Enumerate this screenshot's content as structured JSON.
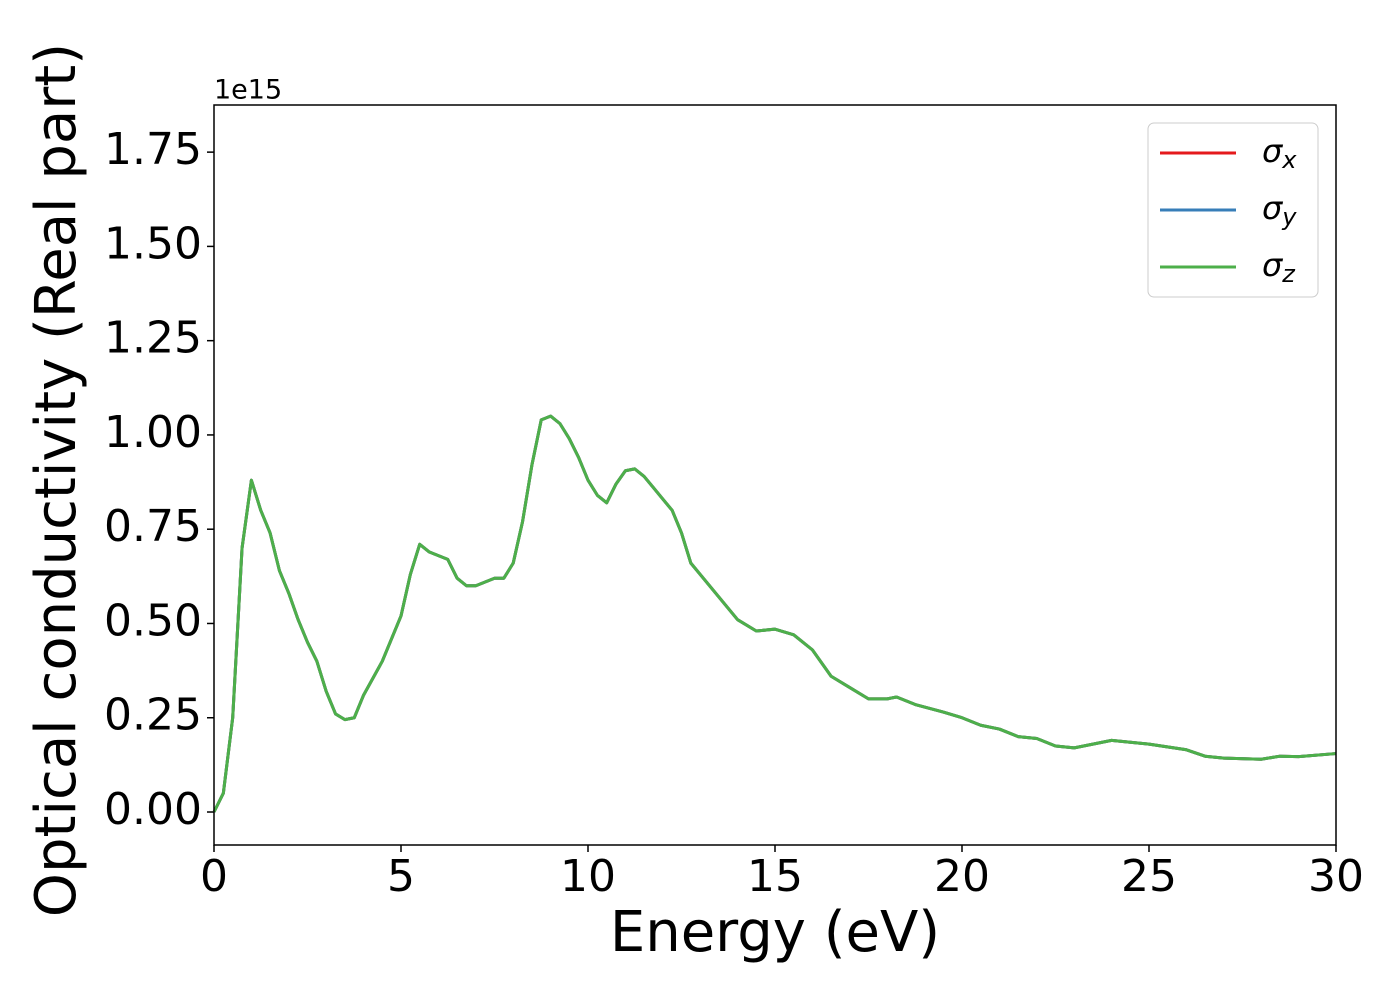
{
  "chart_data": {
    "type": "line",
    "xlabel": "Energy (eV)",
    "ylabel": "Optical conductivity (Real part)",
    "y_offset_label": "1e15",
    "x": [
      0,
      0.25,
      0.5,
      0.75,
      1.0,
      1.25,
      1.5,
      1.75,
      2.0,
      2.25,
      2.5,
      2.75,
      3.0,
      3.25,
      3.5,
      3.75,
      4.0,
      4.5,
      5.0,
      5.25,
      5.5,
      5.75,
      6.0,
      6.25,
      6.5,
      6.75,
      7.0,
      7.25,
      7.5,
      7.75,
      8.0,
      8.25,
      8.5,
      8.75,
      9.0,
      9.25,
      9.5,
      9.75,
      10.0,
      10.25,
      10.5,
      10.75,
      11.0,
      11.25,
      11.5,
      11.75,
      12.0,
      12.25,
      12.5,
      12.75,
      13.0,
      13.5,
      14.0,
      14.5,
      15.0,
      15.5,
      16.0,
      16.5,
      17.0,
      17.5,
      18.0,
      18.25,
      18.75,
      19.5,
      20.0,
      20.5,
      21.0,
      21.5,
      22.0,
      22.5,
      23.0,
      23.5,
      24.0,
      24.5,
      25.0,
      26.0,
      26.5,
      27.0,
      28.0,
      28.5,
      29.0,
      30.0
    ],
    "series": [
      {
        "name": "σx",
        "color": "#e41a1c",
        "values": [
          0,
          0.05,
          0.25,
          0.7,
          0.88,
          0.8,
          0.74,
          0.64,
          0.58,
          0.51,
          0.45,
          0.4,
          0.32,
          0.26,
          0.245,
          0.25,
          0.31,
          0.4,
          0.52,
          0.63,
          0.71,
          0.69,
          0.68,
          0.67,
          0.62,
          0.6,
          0.6,
          0.61,
          0.62,
          0.62,
          0.66,
          0.77,
          0.92,
          1.04,
          1.05,
          1.03,
          0.99,
          0.94,
          0.88,
          0.84,
          0.82,
          0.87,
          0.905,
          0.91,
          0.89,
          0.86,
          0.83,
          0.8,
          0.74,
          0.66,
          0.63,
          0.57,
          0.51,
          0.48,
          0.485,
          0.47,
          0.43,
          0.36,
          0.33,
          0.3,
          0.3,
          0.305,
          0.285,
          0.265,
          0.25,
          0.23,
          0.22,
          0.2,
          0.195,
          0.175,
          0.17,
          0.18,
          0.19,
          0.185,
          0.18,
          0.165,
          0.148,
          0.143,
          0.14,
          0.148,
          0.147,
          0.155
        ]
      },
      {
        "name": "σy",
        "color": "#377eb8",
        "values": [
          0,
          0.05,
          0.25,
          0.7,
          0.88,
          0.8,
          0.74,
          0.64,
          0.58,
          0.51,
          0.45,
          0.4,
          0.32,
          0.26,
          0.245,
          0.25,
          0.31,
          0.4,
          0.52,
          0.63,
          0.71,
          0.69,
          0.68,
          0.67,
          0.62,
          0.6,
          0.6,
          0.61,
          0.62,
          0.62,
          0.66,
          0.77,
          0.92,
          1.04,
          1.05,
          1.03,
          0.99,
          0.94,
          0.88,
          0.84,
          0.82,
          0.87,
          0.905,
          0.91,
          0.89,
          0.86,
          0.83,
          0.8,
          0.74,
          0.66,
          0.63,
          0.57,
          0.51,
          0.48,
          0.485,
          0.47,
          0.43,
          0.36,
          0.33,
          0.3,
          0.3,
          0.305,
          0.285,
          0.265,
          0.25,
          0.23,
          0.22,
          0.2,
          0.195,
          0.175,
          0.17,
          0.18,
          0.19,
          0.185,
          0.18,
          0.165,
          0.148,
          0.143,
          0.14,
          0.148,
          0.147,
          0.155
        ]
      },
      {
        "name": "σz",
        "color": "#4daf4a",
        "values": [
          0,
          0.05,
          0.25,
          0.7,
          0.88,
          0.8,
          0.74,
          0.64,
          0.58,
          0.51,
          0.45,
          0.4,
          0.32,
          0.26,
          0.245,
          0.25,
          0.31,
          0.4,
          0.52,
          0.63,
          0.71,
          0.69,
          0.68,
          0.67,
          0.62,
          0.6,
          0.6,
          0.61,
          0.62,
          0.62,
          0.66,
          0.77,
          0.92,
          1.04,
          1.05,
          1.03,
          0.99,
          0.94,
          0.88,
          0.84,
          0.82,
          0.87,
          0.905,
          0.91,
          0.89,
          0.86,
          0.83,
          0.8,
          0.74,
          0.66,
          0.63,
          0.57,
          0.51,
          0.48,
          0.485,
          0.47,
          0.43,
          0.36,
          0.33,
          0.3,
          0.3,
          0.305,
          0.285,
          0.265,
          0.25,
          0.23,
          0.22,
          0.2,
          0.195,
          0.175,
          0.17,
          0.18,
          0.19,
          0.185,
          0.18,
          0.165,
          0.148,
          0.143,
          0.14,
          0.148,
          0.147,
          0.155
        ]
      }
    ],
    "xlim": [
      0,
      30
    ],
    "xticks": [
      0,
      5,
      10,
      15,
      20,
      25,
      30
    ],
    "ylim": [
      -0.0875,
      1.875
    ],
    "yticks": [
      {
        "value": 0,
        "label": "0.00"
      },
      {
        "value": 0.25,
        "label": "0.25"
      },
      {
        "value": 0.5,
        "label": "0.50"
      },
      {
        "value": 0.75,
        "label": "0.75"
      },
      {
        "value": 1.0,
        "label": "1.00"
      },
      {
        "value": 1.25,
        "label": "1.25"
      },
      {
        "value": 1.5,
        "label": "1.50"
      },
      {
        "value": 1.75,
        "label": "1.75"
      }
    ],
    "grid": false,
    "legend": "upper right"
  }
}
